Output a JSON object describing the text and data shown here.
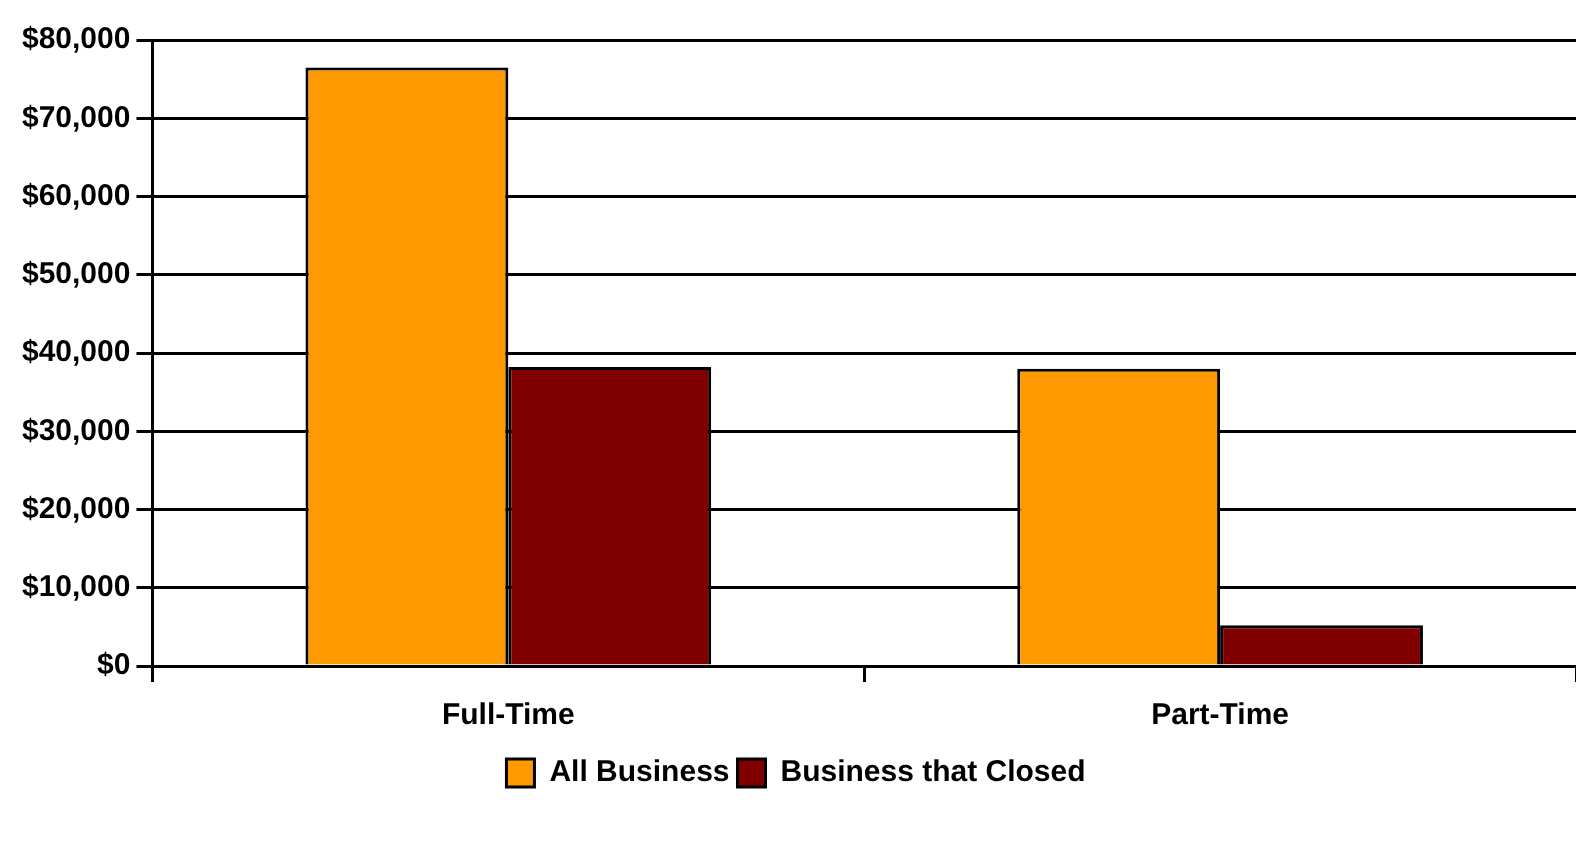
{
  "chart_data": {
    "type": "bar",
    "categories": [
      "Full-Time",
      "Part-Time"
    ],
    "series": [
      {
        "name": "All Business",
        "color": "#ff9900",
        "values": [
          76500,
          38000
        ]
      },
      {
        "name": "Business that Closed",
        "color": "#800000",
        "values": [
          38200,
          5200
        ]
      }
    ],
    "ylim": [
      0,
      80000
    ],
    "yticks": [
      {
        "value": 0,
        "label": "$0"
      },
      {
        "value": 10000,
        "label": "$10,000"
      },
      {
        "value": 20000,
        "label": "$20,000"
      },
      {
        "value": 30000,
        "label": "$30,000"
      },
      {
        "value": 40000,
        "label": "$40,000"
      },
      {
        "value": 50000,
        "label": "$50,000"
      },
      {
        "value": 60000,
        "label": "$60,000"
      },
      {
        "value": 70000,
        "label": "$70,000"
      },
      {
        "value": 80000,
        "label": "$80,000"
      }
    ],
    "grid": "y",
    "legend": "bottom"
  }
}
